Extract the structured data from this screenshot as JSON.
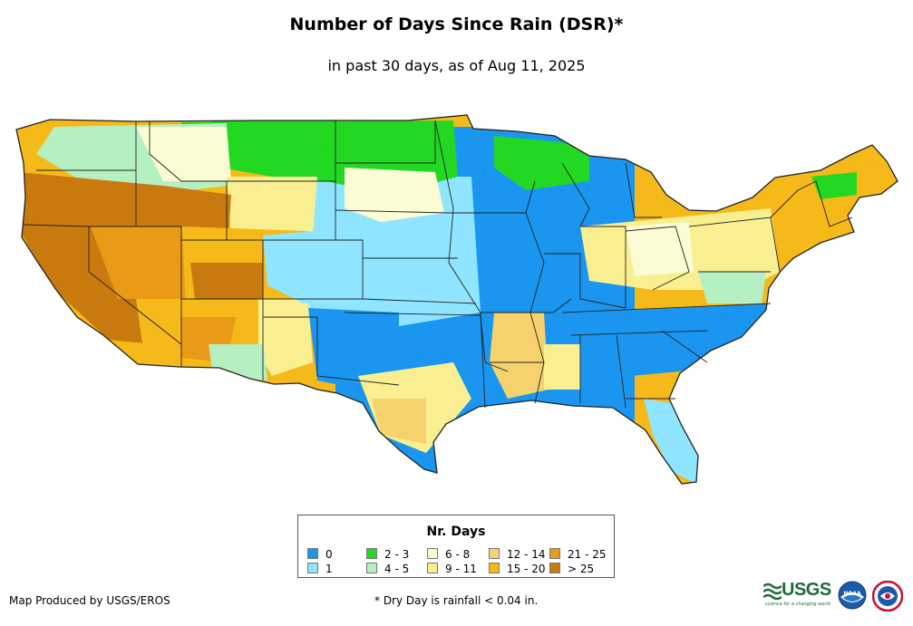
{
  "map": {
    "title": "Number of Days Since Rain (DSR)*",
    "subtitle": "in past 30 days, as of Aug 11, 2025",
    "legend": {
      "title": "Nr. Days",
      "items": [
        {
          "label": "0",
          "color": "#1a96f0"
        },
        {
          "label": "1",
          "color": "#8fe5ff"
        },
        {
          "label": "2 - 3",
          "color": "#22d822"
        },
        {
          "label": "4 - 5",
          "color": "#b5f0c2"
        },
        {
          "label": "6 - 8",
          "color": "#fbfcd4"
        },
        {
          "label": "9 - 11",
          "color": "#f9ef91"
        },
        {
          "label": "12 - 14",
          "color": "#f6d26d"
        },
        {
          "label": "15 - 20",
          "color": "#f5b91a"
        },
        {
          "label": "21 - 25",
          "color": "#e99a16"
        },
        {
          "label": "> 25",
          "color": "#c97a0e"
        }
      ]
    },
    "credit": "Map Produced by USGS/EROS",
    "footnote": "* Dry Day is rainfall < 0.04 in.",
    "logos": {
      "usgs_text": "USGS",
      "usgs_tagline": "science for a changing world",
      "noaa_text": "NOAA"
    },
    "regions": [
      {
        "name": "pacific-northwest-coast",
        "class": "4 - 5"
      },
      {
        "name": "california",
        "class": "> 25"
      },
      {
        "name": "great-basin",
        "class": "21 - 25"
      },
      {
        "name": "desert-southwest",
        "class": "15 - 20"
      },
      {
        "name": "northern-plains",
        "class": "2 - 3"
      },
      {
        "name": "central-plains",
        "class": "1"
      },
      {
        "name": "midwest",
        "class": "0"
      },
      {
        "name": "southeast",
        "class": "0"
      },
      {
        "name": "texas",
        "class": "9 - 11"
      },
      {
        "name": "northeast",
        "class": "9 - 11"
      },
      {
        "name": "new-england",
        "class": "15 - 20"
      },
      {
        "name": "florida",
        "class": "1"
      }
    ]
  }
}
